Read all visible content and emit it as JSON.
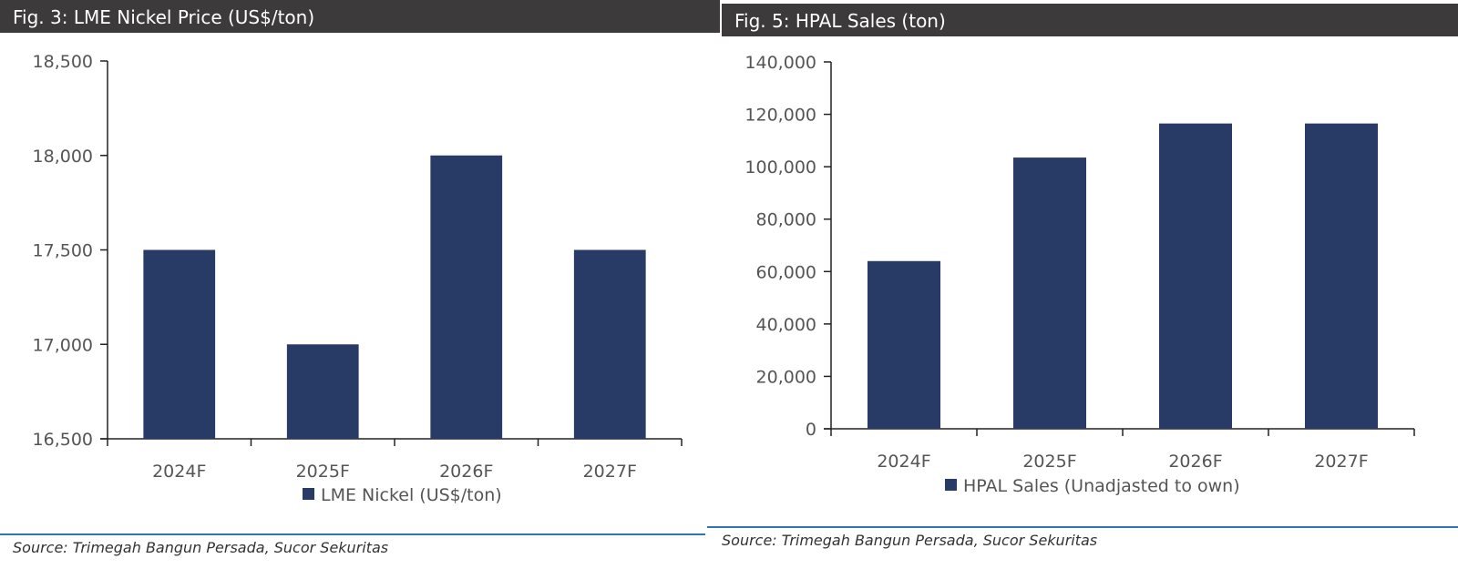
{
  "colors": {
    "bar": "#283a66",
    "axis": "#222222",
    "header_bg": "#3c3a3b",
    "rule": "#2e75b6"
  },
  "left": {
    "header": "Fig. 3: LME Nickel Price (US$/ton)",
    "source": "Source: Trimegah Bangun Persada, Sucor Sekuritas"
  },
  "right": {
    "header": "Fig. 5: HPAL Sales (ton)",
    "source": "Source: Trimegah Bangun Persada, Sucor Sekuritas"
  },
  "chart_data": [
    {
      "type": "bar",
      "title": "Fig. 3: LME Nickel Price (US$/ton)",
      "categories": [
        "2024F",
        "2025F",
        "2026F",
        "2027F"
      ],
      "series": [
        {
          "name": "LME Nickel (US$/ton)",
          "values": [
            17500,
            17000,
            18000,
            17500
          ]
        }
      ],
      "ylim": [
        16500,
        18500
      ],
      "yticks": [
        16500,
        17000,
        17500,
        18000,
        18500
      ],
      "ytick_labels": [
        "16,500",
        "17,000",
        "17,500",
        "18,000",
        "18,500"
      ],
      "xlabel": "",
      "ylabel": "",
      "grid": false,
      "legend": "bottom"
    },
    {
      "type": "bar",
      "title": "Fig. 5: HPAL Sales (ton)",
      "categories": [
        "2024F",
        "2025F",
        "2026F",
        "2027F"
      ],
      "series": [
        {
          "name": "HPAL Sales (Unadjasted to own)",
          "values": [
            64000,
            103500,
            116500,
            116500
          ]
        }
      ],
      "ylim": [
        0,
        140000
      ],
      "yticks": [
        0,
        20000,
        40000,
        60000,
        80000,
        100000,
        120000,
        140000
      ],
      "ytick_labels": [
        "0",
        "20,000",
        "40,000",
        "60,000",
        "80,000",
        "100,000",
        "120,000",
        "140,000"
      ],
      "xlabel": "",
      "ylabel": "",
      "grid": false,
      "legend": "bottom"
    }
  ]
}
